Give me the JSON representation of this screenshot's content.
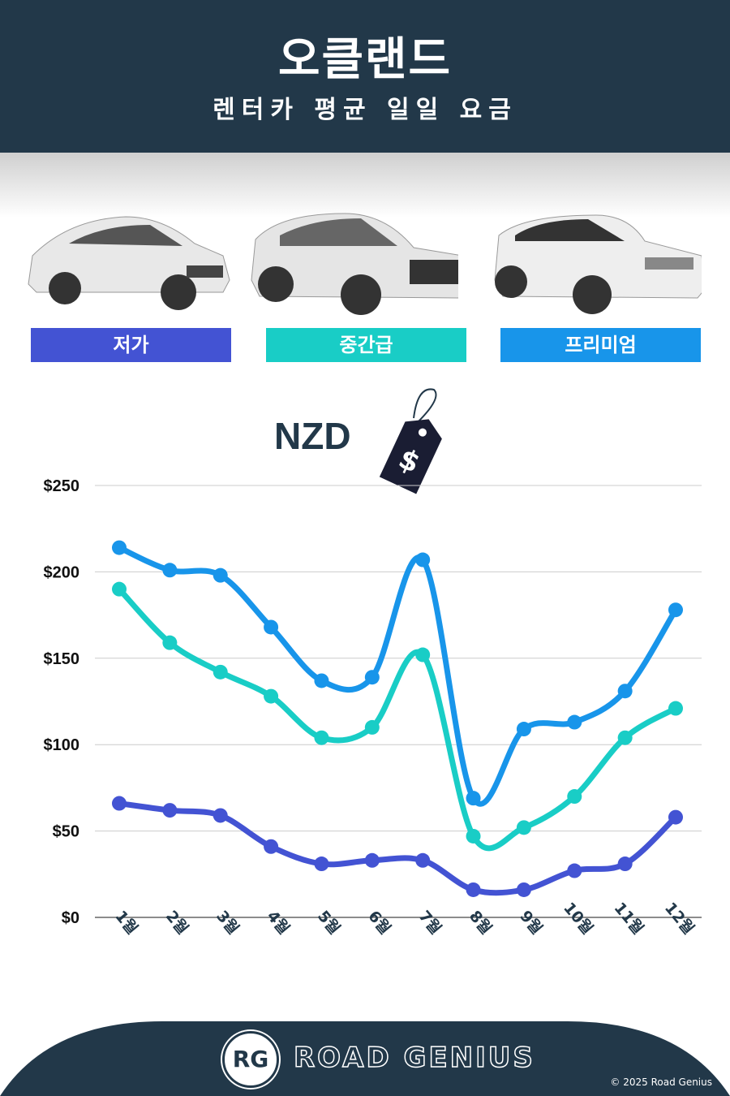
{
  "header": {
    "title": "오클랜드",
    "subtitle": "렌터카 평균 일일 요금"
  },
  "categories": [
    {
      "label": "저가",
      "color": "#4353d3",
      "icon": "hatchback-car-image"
    },
    {
      "label": "중간급",
      "color": "#19cdc6",
      "icon": "suv-car-image"
    },
    {
      "label": "프리미엄",
      "color": "#1895ea",
      "icon": "luxury-suv-image"
    }
  ],
  "currency": {
    "label": "NZD",
    "icon": "price-tag-dollar-icon",
    "tag_symbol": "$"
  },
  "chart_data": {
    "type": "line",
    "title": "",
    "xlabel": "",
    "ylabel": "",
    "categories": [
      "1월",
      "2월",
      "3월",
      "4월",
      "5월",
      "6월",
      "7월",
      "8월",
      "9월",
      "10월",
      "11월",
      "12월"
    ],
    "ylim": [
      0,
      250
    ],
    "yticks": [
      0,
      50,
      100,
      150,
      200,
      250
    ],
    "ytick_labels": [
      "$0",
      "$50",
      "$100",
      "$150",
      "$200",
      "$250"
    ],
    "grid": true,
    "smooth": true,
    "series": [
      {
        "name": "저가",
        "color": "#4353d3",
        "values": [
          66,
          62,
          59,
          41,
          31,
          33,
          33,
          16,
          16,
          27,
          31,
          58
        ]
      },
      {
        "name": "중간급",
        "color": "#19cdc6",
        "values": [
          190,
          159,
          142,
          128,
          104,
          110,
          152,
          47,
          52,
          70,
          104,
          121
        ]
      },
      {
        "name": "프리미엄",
        "color": "#1895ea",
        "values": [
          214,
          201,
          198,
          168,
          137,
          139,
          207,
          69,
          109,
          113,
          131,
          178
        ]
      }
    ]
  },
  "footer": {
    "brand": "ROAD GENIUS",
    "logo": "RG",
    "copyright": "© 2025 Road Genius"
  },
  "colors": {
    "navy": "#223849"
  }
}
